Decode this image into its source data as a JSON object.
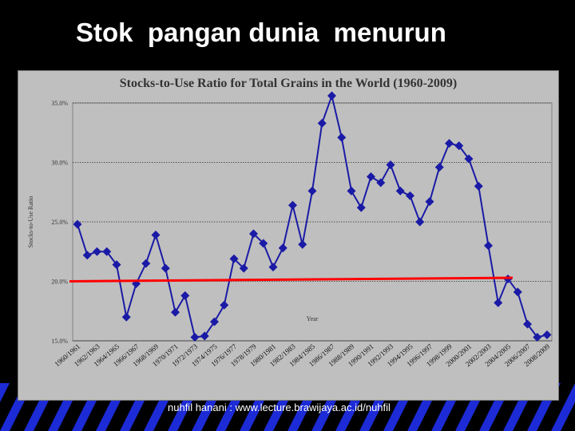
{
  "slide": {
    "title": "Stok  pangan dunia  menurun",
    "footer": "nuhfil hanani : www.lecture.brawijaya.ac.id/nuhfil"
  },
  "colors": {
    "background": "#000000",
    "plot_background": "#bfbfbf",
    "series": "#1a1aa6",
    "trend_line": "#ff0000",
    "stripes": "#1c2bd6"
  },
  "chart_data": {
    "type": "line",
    "title": "Stocks-to-Use Ratio for Total Grains in the World (1960-2009)",
    "xlabel": "Year",
    "ylabel": "Stocks-to-Use Ratio",
    "ylim": [
      15,
      35
    ],
    "yticks": [
      "15.0%",
      "20.0%",
      "25.0%",
      "30.0%",
      "35.0%"
    ],
    "ytick_values": [
      15,
      20,
      25,
      30,
      35
    ],
    "grid": true,
    "legend": "none",
    "x_tick_labels": [
      "1960/1961",
      "1962/1963",
      "1964/1965",
      "1966/1967",
      "1968/1969",
      "1970/1971",
      "1972/1973",
      "1974/1975",
      "1976/1977",
      "1978/1979",
      "1980/1981",
      "1982/1983",
      "1984/1985",
      "1986/1987",
      "1988/1989",
      "1990/1991",
      "1992/1993",
      "1994/1995",
      "1996/1997",
      "1998/1999",
      "2000/2001",
      "2002/2003",
      "2004/2005",
      "2006/2007",
      "2008/2009"
    ],
    "series": [
      {
        "marker": "diamond",
        "x": [
          "1960/1961",
          "1961/1962",
          "1962/1963",
          "1963/1964",
          "1964/1965",
          "1965/1966",
          "1966/1967",
          "1967/1968",
          "1968/1969",
          "1969/1970",
          "1970/1971",
          "1971/1972",
          "1972/1973",
          "1973/1974",
          "1974/1975",
          "1975/1976",
          "1976/1977",
          "1977/1978",
          "1978/1979",
          "1979/1980",
          "1980/1981",
          "1981/1982",
          "1982/1983",
          "1983/1984",
          "1984/1985",
          "1985/1986",
          "1986/1987",
          "1987/1988",
          "1988/1989",
          "1989/1990",
          "1990/1991",
          "1991/1992",
          "1992/1993",
          "1993/1994",
          "1994/1995",
          "1995/1996",
          "1996/1997",
          "1997/1998",
          "1998/1999",
          "1999/2000",
          "2000/2001",
          "2001/2002",
          "2002/2003",
          "2003/2004",
          "2004/2005",
          "2005/2006",
          "2006/2007",
          "2007/2008",
          "2008/2009"
        ],
        "values": [
          24.8,
          22.2,
          22.5,
          22.5,
          21.4,
          17.0,
          19.8,
          21.5,
          23.9,
          21.1,
          17.4,
          18.8,
          15.3,
          15.4,
          16.6,
          18.0,
          21.9,
          21.1,
          24.0,
          23.2,
          21.2,
          22.8,
          26.4,
          23.1,
          27.6,
          33.3,
          35.6,
          32.1,
          27.6,
          26.2,
          28.8,
          28.3,
          29.8,
          27.6,
          27.2,
          25.0,
          26.7,
          29.6,
          31.6,
          31.4,
          30.3,
          28.0,
          23.0,
          18.2,
          20.2,
          19.1,
          16.4,
          15.3,
          15.5
        ]
      }
    ],
    "annotations": [
      {
        "type": "trend_line",
        "x_start": "1960/1961",
        "x_end": "2004/2005",
        "y_start": 20.0,
        "y_end": 20.3
      }
    ]
  }
}
